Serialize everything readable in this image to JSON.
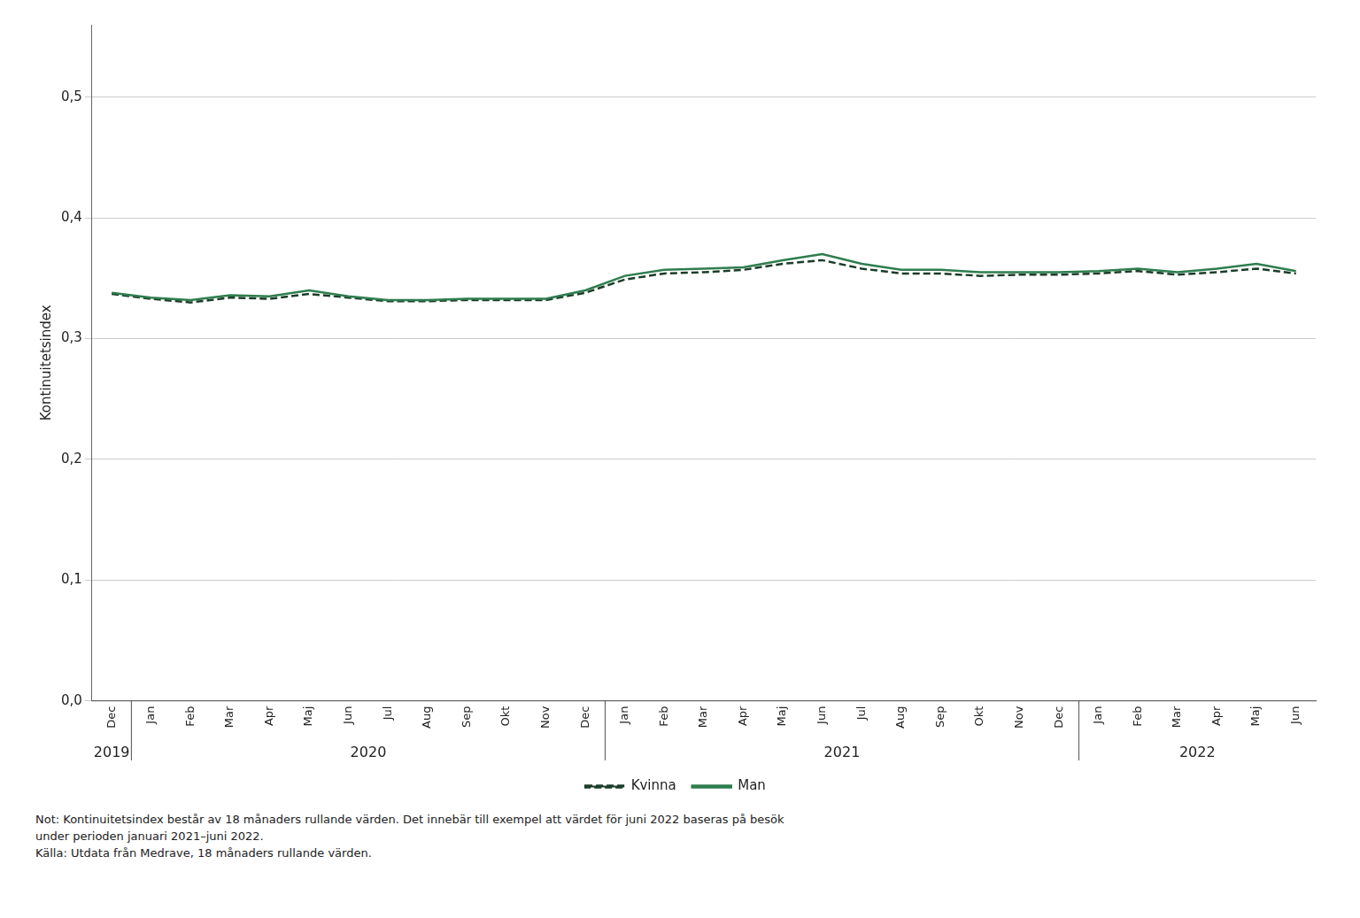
{
  "chart_data": {
    "type": "line",
    "y_label": "Kontinuitetsindex",
    "categories": [
      "Dec",
      "Jan",
      "Feb",
      "Mar",
      "Apr",
      "Maj",
      "Jun",
      "Jul",
      "Aug",
      "Sep",
      "Okt",
      "Nov",
      "Dec",
      "Jan",
      "Feb",
      "Mar",
      "Apr",
      "Maj",
      "Jun",
      "Jul",
      "Aug",
      "Sep",
      "Okt",
      "Nov",
      "Dec",
      "Jan",
      "Feb",
      "Mar",
      "Apr",
      "Maj",
      "Jun"
    ],
    "x_groups": [
      {
        "label": "2019",
        "size": 1
      },
      {
        "label": "2020",
        "size": 12
      },
      {
        "label": "2021",
        "size": 12
      },
      {
        "label": "2022",
        "size": 6
      }
    ],
    "series": [
      {
        "name": "Man",
        "color": "#2e7d4f",
        "line_style": "solid",
        "values": [
          0.338,
          0.334,
          0.332,
          0.336,
          0.335,
          0.34,
          0.335,
          0.332,
          0.332,
          0.333,
          0.333,
          0.333,
          0.34,
          0.352,
          0.357,
          0.358,
          0.359,
          0.365,
          0.37,
          0.362,
          0.357,
          0.357,
          0.355,
          0.355,
          0.355,
          0.356,
          0.358,
          0.355,
          0.358,
          0.362,
          0.356
        ]
      },
      {
        "name": "Kvinna",
        "color": "#1a3d28",
        "line_style": "dashed",
        "values": [
          0.337,
          0.333,
          0.33,
          0.334,
          0.333,
          0.337,
          0.334,
          0.331,
          0.331,
          0.332,
          0.332,
          0.332,
          0.338,
          0.349,
          0.354,
          0.355,
          0.357,
          0.362,
          0.365,
          0.358,
          0.354,
          0.354,
          0.352,
          0.353,
          0.353,
          0.354,
          0.356,
          0.353,
          0.355,
          0.358,
          0.354
        ]
      }
    ],
    "ylim": [
      0.0,
      0.56
    ],
    "yticks": [
      {
        "value": 0.0,
        "label": "0,0"
      },
      {
        "value": 0.1,
        "label": "0,1"
      },
      {
        "value": 0.2,
        "label": "0,2"
      },
      {
        "value": 0.3,
        "label": "0,3"
      },
      {
        "value": 0.4,
        "label": "0,4"
      },
      {
        "value": 0.5,
        "label": "0,5"
      }
    ],
    "grid": true,
    "legend": "bottom",
    "annotations": [
      "Not: Kontinuitetsindex består av 18 månaders rullande värden. Det innebär till exempel att värdet för juni 2022 baseras på besök",
      "under perioden januari 2021–juni 2022.",
      "Källa: Utdata från Medrave, 18 månaders rullande värden."
    ]
  }
}
